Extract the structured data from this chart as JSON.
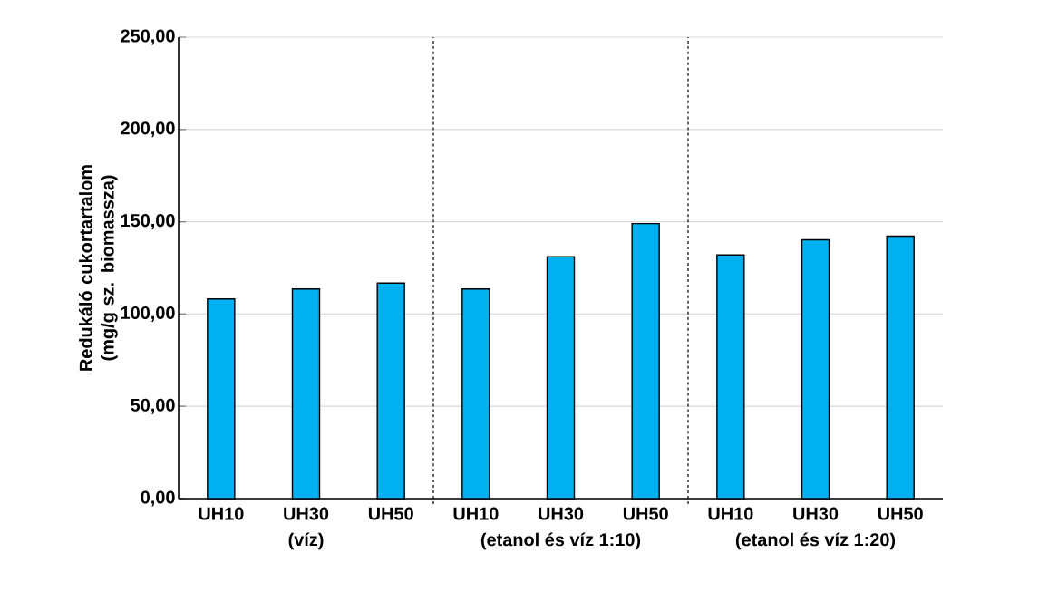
{
  "chart_data": {
    "type": "bar",
    "ylabel": "Redukáló cukortartalom (mg/g sz. biomassza)",
    "categories": [
      "UH10",
      "UH30",
      "UH50",
      "UH10",
      "UH30",
      "UH50",
      "UH10",
      "UH30",
      "UH50"
    ],
    "values": [
      108.2,
      113.6,
      116.8,
      113.6,
      131.0,
      149.0,
      132.0,
      140.2,
      142.2
    ],
    "color": "#00b0f0",
    "ylim": [
      0,
      250
    ],
    "yticks": [
      {
        "value": 0,
        "label": "0,00"
      },
      {
        "value": 50,
        "label": "50,00"
      },
      {
        "value": 100,
        "label": "100,00"
      },
      {
        "value": 150,
        "label": "150,00"
      },
      {
        "value": 200,
        "label": "200,00"
      },
      {
        "value": 250,
        "label": "250,00"
      }
    ],
    "grid": "y",
    "annotations": [
      "(víz)",
      "(etanol és víz 1:10)",
      "(etanol és víz 1:20)"
    ]
  }
}
